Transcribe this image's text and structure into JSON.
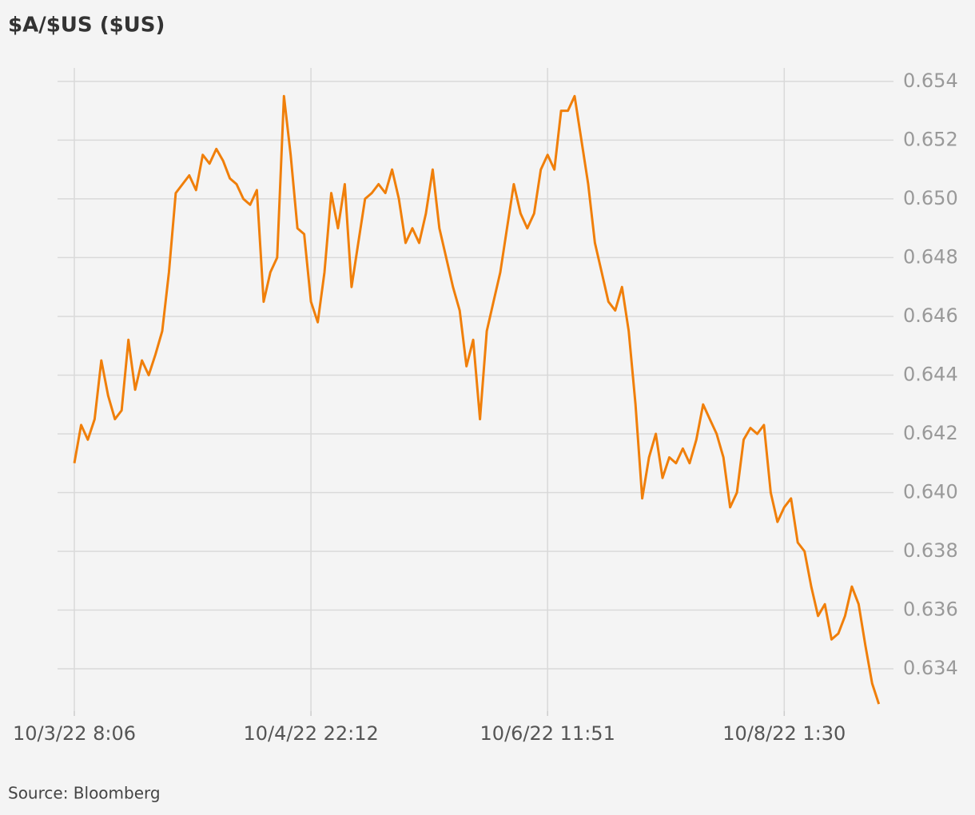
{
  "chart_data": {
    "type": "line",
    "title": "$A/$US ($US)",
    "source": "Source: Bloomberg",
    "color": "#f07f0a",
    "grid": true,
    "categories": [
      "10/3/22 8:06",
      null,
      null,
      null,
      null,
      null,
      null,
      null,
      null,
      null,
      null,
      null,
      null,
      null,
      null,
      null,
      null,
      null,
      null,
      null,
      null,
      null,
      null,
      null,
      null,
      null,
      null,
      null,
      null,
      null,
      null,
      null,
      null,
      null,
      null,
      "10/4/22 22:12",
      null,
      null,
      null,
      null,
      null,
      null,
      null,
      null,
      null,
      null,
      null,
      null,
      null,
      null,
      null,
      null,
      null,
      null,
      null,
      null,
      null,
      null,
      null,
      null,
      null,
      null,
      null,
      null,
      null,
      null,
      null,
      null,
      null,
      null,
      "10/6/22 11:51",
      null,
      null,
      null,
      null,
      null,
      null,
      null,
      null,
      null,
      null,
      null,
      null,
      null,
      null,
      null,
      null,
      null,
      null,
      null,
      null,
      null,
      null,
      null,
      null,
      null,
      null,
      null,
      null,
      null,
      null,
      null,
      null,
      null,
      null,
      "10/8/22 1:30",
      null,
      null,
      null,
      null,
      null,
      null,
      null,
      null,
      null,
      null,
      null,
      null,
      null,
      null
    ],
    "values": [
      0.641,
      0.6423,
      0.6418,
      0.6425,
      0.6445,
      0.6433,
      0.6425,
      0.6428,
      0.6452,
      0.6435,
      0.6445,
      0.644,
      0.6447,
      0.6455,
      0.6475,
      0.6502,
      0.6505,
      0.6508,
      0.6503,
      0.6515,
      0.6512,
      0.6517,
      0.6513,
      0.6507,
      0.6505,
      0.65,
      0.6498,
      0.6503,
      0.6465,
      0.6475,
      0.648,
      0.6535,
      0.6515,
      0.649,
      0.6488,
      0.6465,
      0.6458,
      0.6475,
      0.6502,
      0.649,
      0.6505,
      0.647,
      0.6485,
      0.65,
      0.6502,
      0.6505,
      0.6502,
      0.651,
      0.65,
      0.6485,
      0.649,
      0.6485,
      0.6495,
      0.651,
      0.649,
      0.648,
      0.647,
      0.6462,
      0.6443,
      0.6452,
      0.6425,
      0.6455,
      0.6465,
      0.6475,
      0.649,
      0.6505,
      0.6495,
      0.649,
      0.6495,
      0.651,
      0.6515,
      0.651,
      0.653,
      0.653,
      0.6535,
      0.652,
      0.6505,
      0.6485,
      0.6475,
      0.6465,
      0.6462,
      0.647,
      0.6455,
      0.643,
      0.6398,
      0.6412,
      0.642,
      0.6405,
      0.6412,
      0.641,
      0.6415,
      0.641,
      0.6418,
      0.643,
      0.6425,
      0.642,
      0.6412,
      0.6395,
      0.64,
      0.6418,
      0.6422,
      0.642,
      0.6423,
      0.64,
      0.639,
      0.6395,
      0.6398,
      0.6383,
      0.638,
      0.6368,
      0.6358,
      0.6362,
      0.635,
      0.6352,
      0.6358,
      0.6368,
      0.6362,
      0.6348,
      0.6335,
      0.6328
    ],
    "ylim": [
      0.6326,
      0.6545
    ],
    "yticks": [
      0.634,
      0.636,
      0.638,
      {
        "value": 0.64,
        "label": "0.640"
      },
      0.642,
      0.644,
      0.646,
      0.648,
      {
        "value": 0.65,
        "label": "0.650"
      },
      0.652,
      0.654
    ]
  }
}
